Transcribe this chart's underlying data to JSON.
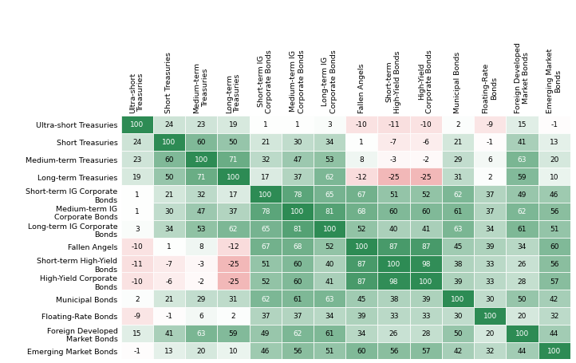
{
  "labels": [
    "Ultra-short Treasuries",
    "Short Treasuries",
    "Medium-term Treasuries",
    "Long-term Treasuries",
    "Short-term IG Corporate\nBonds",
    "Medium-term IG\nCorporate Bonds",
    "Long-term IG Corporate\nBonds",
    "Fallen Angels",
    "Short-term High-Yield\nBonds",
    "High-Yield Corporate\nBonds",
    "Municipal Bonds",
    "Floating-Rate Bonds",
    "Foreign Developed\nMarket Bonds",
    "Emerging Market Bonds"
  ],
  "col_labels": [
    "Ultra-short\nTreasuries",
    "Short Treasuries",
    "Medium-term\nTreasuries",
    "Long-term\nTreasuries",
    "Short-term IG\nCorporate Bonds",
    "Medium-term IG\nCorporate Bonds",
    "Long-term IG\nCorporate Bonds",
    "Fallen Angels",
    "Short-term\nHigh-Yield Bonds",
    "High-Yield\nCorporate Bonds",
    "Municipal Bonds",
    "Floating-Rate\nBonds",
    "Foreign Developed\nMarket Bonds",
    "Emerging Market\nBonds"
  ],
  "matrix": [
    [
      100,
      24,
      23,
      19,
      1,
      1,
      3,
      -10,
      -11,
      -10,
      2,
      -9,
      15,
      -1
    ],
    [
      24,
      100,
      60,
      50,
      21,
      30,
      34,
      1,
      -7,
      -6,
      21,
      -1,
      41,
      13
    ],
    [
      23,
      60,
      100,
      71,
      32,
      47,
      53,
      8,
      -3,
      -2,
      29,
      6,
      63,
      20
    ],
    [
      19,
      50,
      71,
      100,
      17,
      37,
      62,
      -12,
      -25,
      -25,
      31,
      2,
      59,
      10
    ],
    [
      1,
      21,
      32,
      17,
      100,
      78,
      65,
      67,
      51,
      52,
      62,
      37,
      49,
      46
    ],
    [
      1,
      30,
      47,
      37,
      78,
      100,
      81,
      68,
      60,
      60,
      61,
      37,
      62,
      56
    ],
    [
      3,
      34,
      53,
      62,
      65,
      81,
      100,
      52,
      40,
      41,
      63,
      34,
      61,
      51
    ],
    [
      -10,
      1,
      8,
      -12,
      67,
      68,
      52,
      100,
      87,
      87,
      45,
      39,
      34,
      60
    ],
    [
      -11,
      -7,
      -3,
      -25,
      51,
      60,
      40,
      87,
      100,
      98,
      38,
      33,
      26,
      56
    ],
    [
      -10,
      -6,
      -2,
      -25,
      52,
      60,
      41,
      87,
      98,
      100,
      39,
      33,
      28,
      57
    ],
    [
      2,
      21,
      29,
      31,
      62,
      61,
      63,
      45,
      38,
      39,
      100,
      30,
      50,
      42
    ],
    [
      -9,
      -1,
      6,
      2,
      37,
      37,
      34,
      39,
      33,
      33,
      30,
      100,
      20,
      32
    ],
    [
      15,
      41,
      63,
      59,
      49,
      62,
      61,
      34,
      26,
      28,
      50,
      20,
      100,
      44
    ],
    [
      -1,
      13,
      20,
      10,
      46,
      56,
      51,
      60,
      56,
      57,
      42,
      32,
      44,
      100
    ]
  ],
  "colormap_neg": "#f2b8b8",
  "colormap_mid": "#ffffff",
  "colormap_pos": "#2d8b54",
  "vmin": -25,
  "vmax": 100,
  "fontsize_cell": 6.5,
  "fontsize_row_label": 6.8,
  "fontsize_col_label": 6.8,
  "background_color": "#ffffff",
  "white_text_threshold": 62
}
